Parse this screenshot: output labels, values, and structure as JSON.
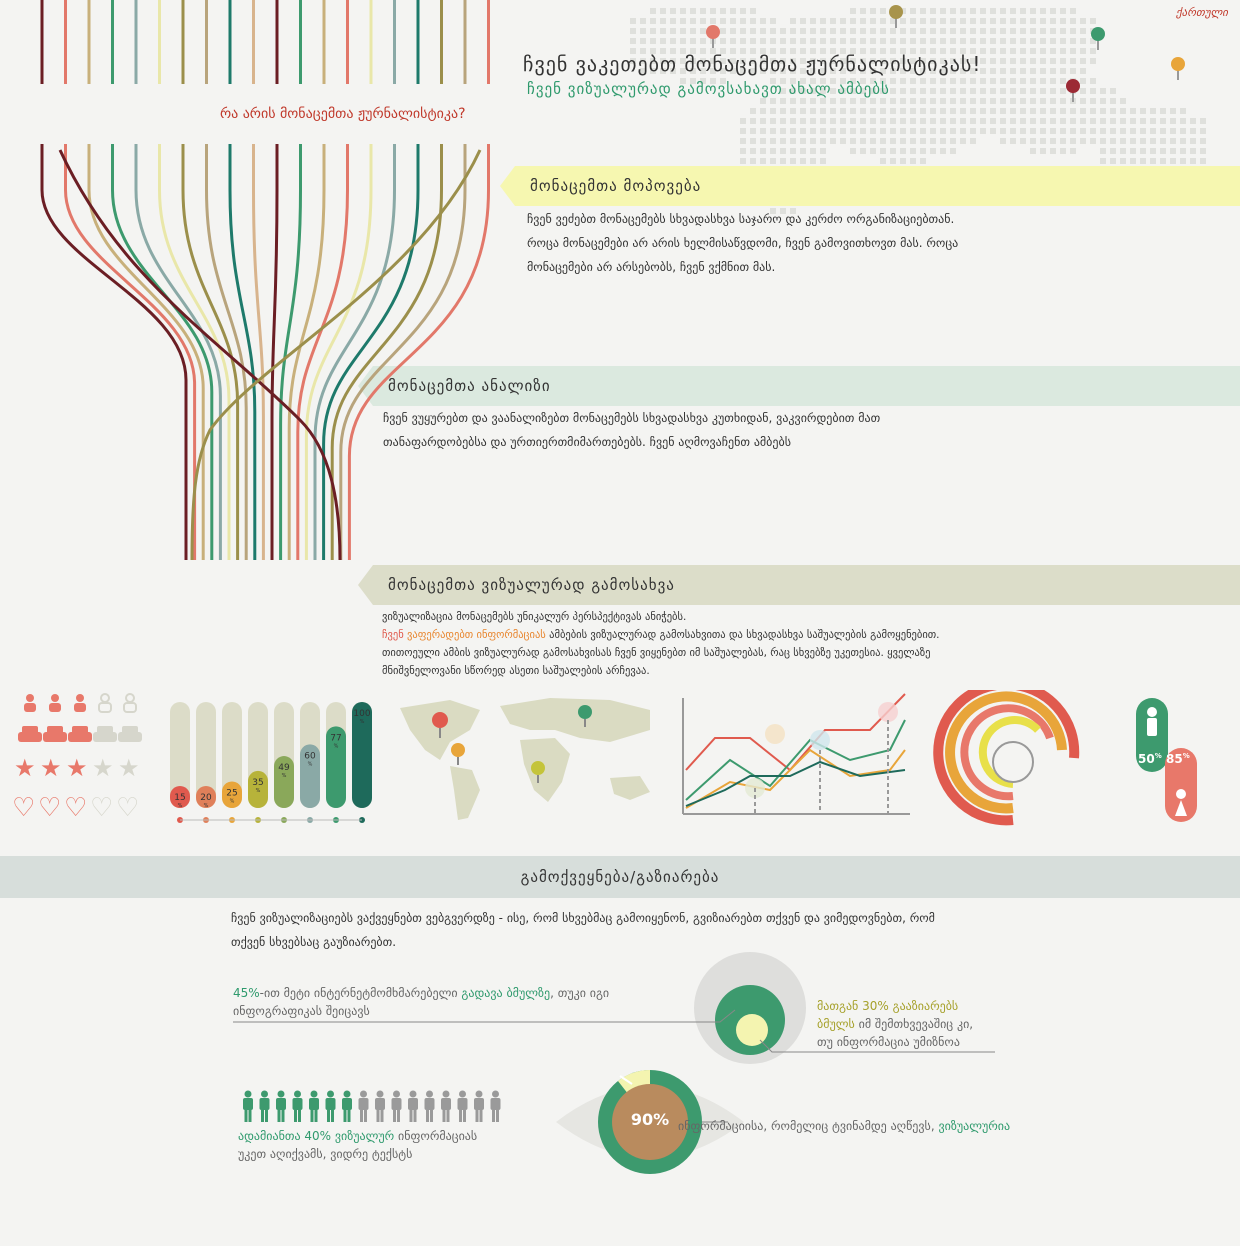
{
  "header": {
    "lang_link": "ქართული",
    "title": "ჩვენ ვაკეთებთ მონაცემთა ჟურნალისტიკას!",
    "subtitle": "ჩვენ ვიზუალურად გამოვსახავთ ახალ ამბებს",
    "question": "რა არის მონაცემთა ჟურნალისტიკა?"
  },
  "colors": {
    "lines": [
      "#6b1e24",
      "#e2786a",
      "#c8b07b",
      "#3d9a6e",
      "#8aa9a6",
      "#e9e7a9",
      "#9b8f4b",
      "#b8a47c",
      "#1e7a6b",
      "#d8b48d"
    ],
    "band_yellow": "#f6f7b0",
    "band_green": "#dbe9df",
    "band_olive": "#dcddc9",
    "accent_green": "#2f9a6d",
    "accent_red": "#e05a4e",
    "accent_orange": "#e8852d"
  },
  "sections": {
    "collect": {
      "title": "მონაცემთა მოპოვება",
      "lines": [
        "ჩვენ ვეძებთ მონაცემებს სხვადასხვა საჯარო და კერძო ორგანიზაციებთან.",
        "როცა მონაცემები არ არის ხელმისაწვდომი, ჩვენ გამოვითხოვთ მას. როცა",
        "მონაცემები არ არსებობს, ჩვენ ვქმნით მას."
      ]
    },
    "analysis": {
      "title": "მონაცემთა ანალიზი",
      "lines": [
        "ჩვენ ვუყურებთ და ვაანალიზებთ მონაცემებს სხვადასხვა კუთხიდან, ვაკვირდებით მათ",
        "თანაფარდობებსა და ურთიერთმიმართებებს. ჩვენ აღმოვაჩენთ ამბებს"
      ]
    },
    "visual": {
      "title": "მონაცემთა ვიზუალურად გამოსახვა",
      "line1": "ვიზუალიზაცია მონაცემებს უნიკალურ პერსპექტივას ანიჭებს.",
      "line2_red": "ჩვენ ",
      "line2_orange": "ვაფერადებთ ინფორმაციას",
      "line2_rest": " ამბების ვიზუალურად გამოსახვითა და სხვადასხვა საშუალების გამოყენებით.",
      "line3": "თითოეული ამბის ვიზუალურად გამოსახვისას ჩვენ ვიყენებთ იმ საშუალებას, რაც სხვებზე უკეთესია. ყველაზე",
      "line4": "მნიშვნელოვანი სწორედ ასეთი საშუალების არჩევაა."
    }
  },
  "bar_chart": {
    "values": [
      15,
      20,
      25,
      35,
      49,
      60,
      77,
      100
    ],
    "unit": "%",
    "colors": [
      "#e05a4e",
      "#e0805a",
      "#e8a53a",
      "#b7b33a",
      "#8aa85a",
      "#8aa9a6",
      "#3d9a6e",
      "#1e6a5b"
    ]
  },
  "people_panel": {
    "male": "50",
    "female": "85",
    "unit": "%"
  },
  "share": {
    "title": "გამოქვეყნება/გაზიარება",
    "intro_1": "ჩვენ ვიზუალიზაციებს ვაქვეყნებთ ვებგვერდზე - ისე, რომ სხვებმაც გამოიყენონ, გვიზიარებთ თქვენ და ვიმედოვნებთ, რომ",
    "intro_2": "თქვენ სხვებსაც გაუზიარებთ.",
    "left_stat_pct": "45%",
    "left_stat_a": "-ით მეტი ინტერნეტმომხმარებელი ",
    "left_stat_b": "გადავა ბმულზე",
    "left_stat_c": ", თუკი იგი",
    "left_stat_d": "ინფოგრაფიკას შეიცავს",
    "right_stat_a": "მათგან 30% გააზიარებს",
    "right_stat_b": "ბმულს",
    "right_stat_c": " იმ შემთხვევაშიც კი,",
    "right_stat_d": "თუ ინფორმაცია უმიზნოა",
    "people_a": "ადამიანთა 40% ",
    "people_b": "ვიზუალურ",
    "people_c": " ინფორმაციას",
    "people_d": "უკეთ აღიქვამს, ვიდრე ტექსტს",
    "eye_pct": "90%",
    "eye_text_a": "ინფორმაციისა, რომელიც ტვინამდე აღწევს, ",
    "eye_text_b": "ვიზუალურია"
  }
}
